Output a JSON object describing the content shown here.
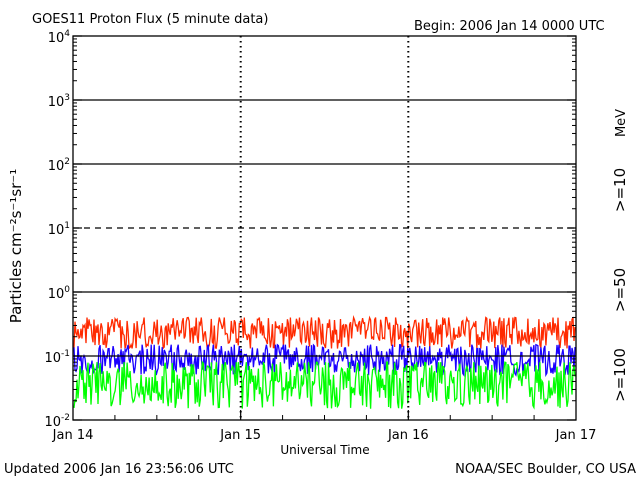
{
  "header": {
    "title": "GOES11 Proton Flux (5 minute data)",
    "begin": "Begin: 2006 Jan 14 0000 UTC"
  },
  "footer": {
    "updated": "Updated 2006 Jan 16 23:56:06 UTC",
    "credit": "NOAA/SEC Boulder, CO USA"
  },
  "chart_data": {
    "type": "line",
    "title": "GOES11 Proton Flux (5 minute data)",
    "xlabel": "Universal Time",
    "ylabel": "Particles cm⁻²s⁻¹sr⁻¹",
    "y_scale": "log",
    "ylim": [
      0.01,
      10000
    ],
    "y_ticks": [
      {
        "base": "10",
        "exp": "-2"
      },
      {
        "base": "10",
        "exp": "-1"
      },
      {
        "base": "10",
        "exp": "0"
      },
      {
        "base": "10",
        "exp": "1"
      },
      {
        "base": "10",
        "exp": "2"
      },
      {
        "base": "10",
        "exp": "3"
      },
      {
        "base": "10",
        "exp": "4"
      }
    ],
    "x": [
      "Jan 14",
      "Jan 15",
      "Jan 16",
      "Jan 17"
    ],
    "xlim": [
      "2006 Jan 14 0000 UTC",
      "2006 Jan 17 0000 UTC"
    ],
    "grid": true,
    "unit_label": "MeV",
    "series": [
      {
        "name": ">=10",
        "color": "#ff2a00",
        "typical_range": [
          0.13,
          0.4
        ]
      },
      {
        "name": ">=50",
        "color": "#1a00ff",
        "typical_range": [
          0.05,
          0.15
        ]
      },
      {
        "name": ">=100",
        "color": "#00ff00",
        "typical_range": [
          0.015,
          0.08
        ]
      }
    ]
  }
}
